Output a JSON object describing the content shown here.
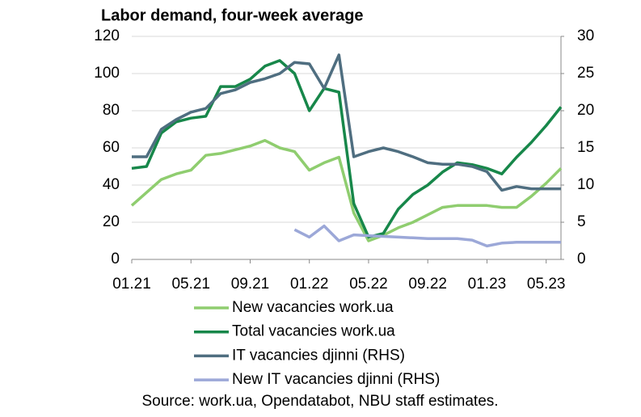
{
  "chart_data": {
    "type": "line",
    "title": "Labor demand, four-week average",
    "source": "Source: work.ua, Opendatabot, NBU staff estimates.",
    "categories": [
      "01.21",
      null,
      null,
      null,
      "05.21",
      null,
      null,
      null,
      "09.21",
      null,
      null,
      null,
      "01.22",
      null,
      null,
      null,
      "05.22",
      null,
      null,
      null,
      "09.22",
      null,
      null,
      null,
      "01.23",
      null,
      null,
      null,
      "05.23",
      null
    ],
    "series": [
      {
        "name": "New vacancies work.ua",
        "color": "#8fcd6f",
        "axis": "y",
        "values": [
          29,
          36,
          43,
          46,
          48,
          56,
          57,
          59,
          61,
          64,
          60,
          58,
          48,
          52,
          55,
          25,
          10,
          13,
          17,
          20,
          24,
          28,
          29,
          29,
          29,
          28,
          28,
          34,
          41,
          49
        ]
      },
      {
        "name": "Total vacancies work.ua",
        "color": "#17874a",
        "axis": "y",
        "values": [
          49,
          50,
          68,
          74,
          76,
          77,
          93,
          93,
          97,
          104,
          107,
          100,
          80,
          92,
          90,
          30,
          12,
          14,
          27,
          35,
          40,
          47,
          52,
          51,
          49,
          46,
          55,
          63,
          72,
          82
        ]
      },
      {
        "name": "IT vacancies djinni (RHS)",
        "color": "#4f6e80",
        "axis": "y2",
        "values": [
          13.8,
          13.8,
          17.5,
          18.8,
          19.8,
          20.3,
          22.3,
          22.8,
          23.8,
          24.3,
          25,
          26.5,
          26.3,
          23,
          27.5,
          13.8,
          14.5,
          15,
          14.5,
          13.8,
          13,
          12.8,
          12.8,
          12.5,
          11.8,
          9.3,
          9.8,
          9.5,
          9.5,
          9.5
        ]
      },
      {
        "name": "New IT vacancies djinni (RHS)",
        "color": "#9ca8d8",
        "axis": "y2",
        "values": [
          null,
          null,
          null,
          null,
          null,
          null,
          null,
          null,
          null,
          null,
          null,
          4,
          3,
          4.5,
          2.5,
          3.3,
          3.2,
          3.1,
          3,
          2.9,
          2.8,
          2.8,
          2.8,
          2.6,
          1.8,
          2.2,
          2.3,
          2.3,
          2.3,
          2.3
        ]
      }
    ],
    "ylim": [
      0,
      120
    ],
    "yticks": [
      0,
      20,
      40,
      60,
      80,
      100,
      120
    ],
    "y2lim": [
      0,
      30
    ],
    "y2ticks": [
      0,
      5,
      10,
      15,
      20,
      25,
      30
    ],
    "grid": true
  }
}
